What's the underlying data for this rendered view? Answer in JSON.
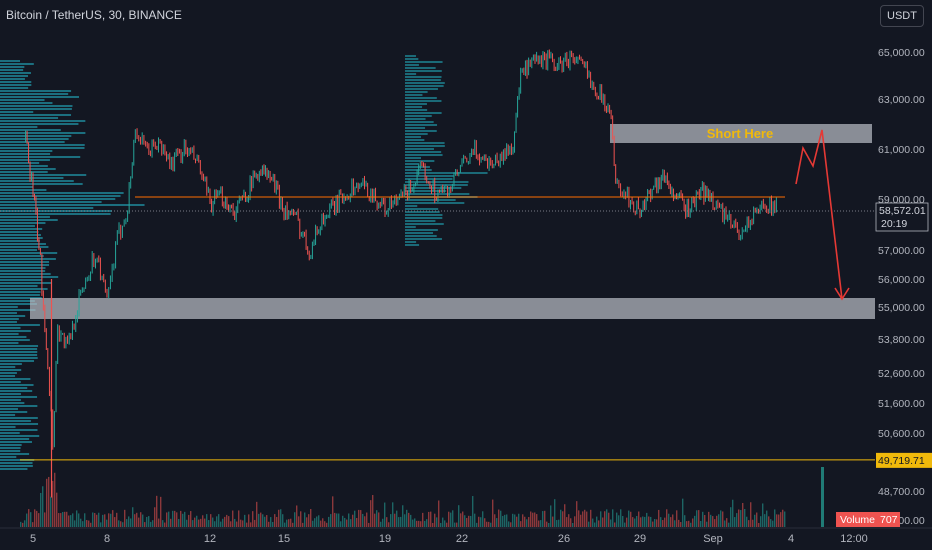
{
  "header": {
    "title": "Bitcoin / TetherUS, 30, BINANCE",
    "currency_button": "USDT"
  },
  "annotations": {
    "short_label": "Short Here"
  },
  "price_tag": {
    "price": "58,572.01",
    "countdown": "20:19"
  },
  "horizontal_line": {
    "label": "49,719.71",
    "value": 49719.71,
    "color": "#f0b90b"
  },
  "volume_tag": {
    "label": "Volume",
    "value": "707"
  },
  "colors": {
    "background": "#131722",
    "up": "#26a69a",
    "down": "#ef5350",
    "zone": "#b2b5be",
    "arrow": "#e53935",
    "annotation_text": "#f0b90b",
    "profile": "#1e7f8f"
  },
  "chart_data": {
    "type": "line",
    "ylim": [
      48000,
      66000
    ],
    "y_ticks": [
      {
        "v": 65000,
        "label": "65,000.00"
      },
      {
        "v": 63000,
        "label": "63,000.00"
      },
      {
        "v": 61000,
        "label": "61,000.00"
      },
      {
        "v": 59000,
        "label": "59,000.00"
      },
      {
        "v": 57000,
        "label": "57,000.00"
      },
      {
        "v": 56000,
        "label": "56,000.00"
      },
      {
        "v": 55000,
        "label": "55,000.00"
      },
      {
        "v": 53800,
        "label": "53,800.00"
      },
      {
        "v": 52600,
        "label": "52,600.00"
      },
      {
        "v": 51600,
        "label": "51,600.00"
      },
      {
        "v": 50600,
        "label": "50,600.00"
      },
      {
        "v": 48700,
        "label": "48,700.00"
      },
      {
        "v": 47800,
        "label": "47,800.00"
      }
    ],
    "x_ticks": [
      "5",
      "8",
      "12",
      "15",
      "19",
      "22",
      "26",
      "29",
      "Sep",
      "4",
      "12:00"
    ],
    "x_tick_days": [
      5,
      8,
      12,
      15,
      19,
      22,
      26,
      29,
      32,
      35,
      38
    ],
    "xlim": [
      4.7,
      39.5
    ],
    "price_path": [
      [
        4.7,
        61400
      ],
      [
        5.0,
        59300
      ],
      [
        5.3,
        56500
      ],
      [
        5.6,
        53000
      ],
      [
        5.8,
        50300
      ],
      [
        6.0,
        54200
      ],
      [
        6.4,
        53500
      ],
      [
        6.8,
        55000
      ],
      [
        7.2,
        56200
      ],
      [
        7.6,
        56900
      ],
      [
        8.0,
        55100
      ],
      [
        8.4,
        57400
      ],
      [
        8.8,
        58700
      ],
      [
        9.1,
        61800
      ],
      [
        9.5,
        60900
      ],
      [
        10.0,
        61200
      ],
      [
        10.5,
        60400
      ],
      [
        11.0,
        61000
      ],
      [
        11.5,
        60500
      ],
      [
        12.0,
        58800
      ],
      [
        12.5,
        59100
      ],
      [
        13.0,
        58500
      ],
      [
        13.5,
        59300
      ],
      [
        14.0,
        60200
      ],
      [
        14.5,
        59800
      ],
      [
        15.0,
        58600
      ],
      [
        15.5,
        58200
      ],
      [
        16.0,
        57000
      ],
      [
        16.5,
        58200
      ],
      [
        17.0,
        58700
      ],
      [
        17.5,
        59300
      ],
      [
        18.0,
        59600
      ],
      [
        18.5,
        59200
      ],
      [
        19.0,
        58600
      ],
      [
        19.5,
        58900
      ],
      [
        20.0,
        59500
      ],
      [
        20.5,
        60200
      ],
      [
        21.0,
        59200
      ],
      [
        21.5,
        59400
      ],
      [
        22.0,
        60300
      ],
      [
        22.5,
        60900
      ],
      [
        23.0,
        60500
      ],
      [
        23.5,
        60600
      ],
      [
        24.0,
        61200
      ],
      [
        24.3,
        64000
      ],
      [
        24.8,
        64500
      ],
      [
        25.3,
        64700
      ],
      [
        25.8,
        64400
      ],
      [
        26.3,
        64800
      ],
      [
        26.8,
        64300
      ],
      [
        27.3,
        63400
      ],
      [
        27.8,
        62600
      ],
      [
        28.1,
        59400
      ],
      [
        28.5,
        59100
      ],
      [
        29.0,
        58500
      ],
      [
        29.5,
        59500
      ],
      [
        30.0,
        59900
      ],
      [
        30.5,
        59000
      ],
      [
        31.0,
        58600
      ],
      [
        31.5,
        59300
      ],
      [
        32.0,
        59000
      ],
      [
        32.5,
        58200
      ],
      [
        33.0,
        57700
      ],
      [
        33.5,
        58200
      ],
      [
        34.0,
        58900
      ],
      [
        34.5,
        58572
      ]
    ],
    "volume_scale": 1000
  }
}
